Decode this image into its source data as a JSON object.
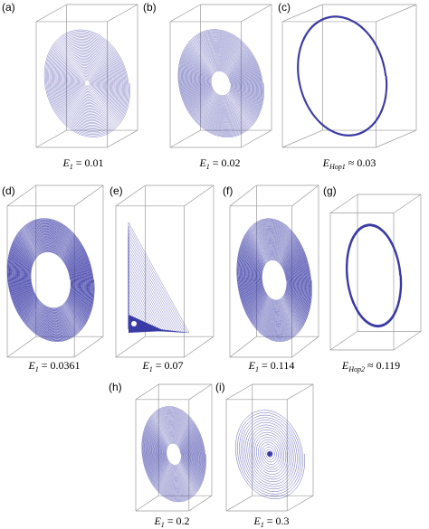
{
  "panels": [
    {
      "label": "(a)",
      "caption": {
        "symbol": "E",
        "subscript": "1",
        "rest": "= 0.01"
      }
    },
    {
      "label": "(b)",
      "caption": {
        "symbol": "E",
        "subscript": "1",
        "rest": "= 0.02"
      }
    },
    {
      "label": "(c)",
      "caption": {
        "symbol": "E",
        "subscript": "Hop1",
        "rest": "≈ 0.03"
      }
    },
    {
      "label": "(d)",
      "caption": {
        "symbol": "E",
        "subscript": "1",
        "rest": "= 0.0361"
      }
    },
    {
      "label": "(e)",
      "caption": {
        "symbol": "E",
        "subscript": "1",
        "rest": "= 0.07"
      }
    },
    {
      "label": "(f)",
      "caption": {
        "symbol": "E",
        "subscript": "1",
        "rest": "= 0.114"
      }
    },
    {
      "label": "(g)",
      "caption": {
        "symbol": "E",
        "subscript": "Hop2",
        "rest": "≈ 0.119"
      }
    },
    {
      "label": "(h)",
      "caption": {
        "symbol": "E",
        "subscript": "1",
        "rest": "= 0.2"
      }
    },
    {
      "label": "(i)",
      "caption": {
        "symbol": "E",
        "subscript": "1",
        "rest": "= 0.3"
      }
    }
  ]
}
